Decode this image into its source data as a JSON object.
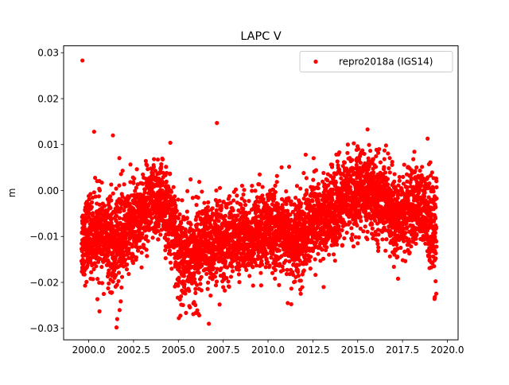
{
  "chart_data": {
    "type": "scatter",
    "title": "LAPC V",
    "xlabel": "",
    "ylabel": "m",
    "xlim": [
      1998.6,
      2020.6
    ],
    "ylim": [
      -0.0325,
      0.0315
    ],
    "xticks": [
      2000.0,
      2002.5,
      2005.0,
      2007.5,
      2010.0,
      2012.5,
      2015.0,
      2017.5,
      2020.0
    ],
    "xtick_labels": [
      "2000.0",
      "2002.5",
      "2005.0",
      "2007.5",
      "2010.0",
      "2012.5",
      "2015.0",
      "2017.5",
      "2020.0"
    ],
    "yticks": [
      -0.03,
      -0.02,
      -0.01,
      0.0,
      0.01,
      0.02,
      0.03
    ],
    "ytick_labels": [
      "−0.03",
      "−0.02",
      "−0.01",
      "0.00",
      "0.01",
      "0.02",
      "0.03"
    ],
    "grid": false,
    "legend_position": "top-right",
    "color": "#ff0000",
    "series": [
      {
        "name": "repro2018a (IGS14)",
        "marker": "dot",
        "trend": {
          "x": [
            1999.6,
            2000.5,
            2001.0,
            2001.5,
            2002.0,
            2002.7,
            2003.3,
            2004.0,
            2004.5,
            2005.0,
            2005.7,
            2006.5,
            2007.5,
            2008.5,
            2009.5,
            2010.3,
            2011.0,
            2011.6,
            2012.3,
            2013.0,
            2013.7,
            2014.5,
            2015.3,
            2016.0,
            2016.5,
            2017.0,
            2017.5,
            2018.3,
            2019.0,
            2019.4
          ],
          "y": [
            -0.011,
            -0.009,
            -0.011,
            -0.012,
            -0.009,
            -0.006,
            -0.003,
            -0.002,
            -0.005,
            -0.013,
            -0.015,
            -0.012,
            -0.011,
            -0.01,
            -0.009,
            -0.0085,
            -0.009,
            -0.012,
            -0.007,
            -0.005,
            -0.004,
            -0.001,
            0.0,
            -0.002,
            -0.001,
            -0.006,
            -0.005,
            -0.003,
            -0.006,
            -0.008
          ]
        },
        "outliers": {
          "x": [
            1999.65,
            2000.3,
            2001.35,
            2007.15,
            2015.55,
            2018.9,
            2001.55,
            2006.7,
            2000.6,
            2013.1,
            2017.25,
            2019.3,
            2007.3,
            2012.1,
            2004.55,
            2011.1
          ],
          "y": [
            0.0283,
            0.0128,
            0.012,
            0.0147,
            0.0133,
            0.0113,
            -0.0298,
            -0.029,
            -0.0263,
            -0.021,
            -0.0192,
            -0.0232,
            -0.0248,
            0.0078,
            0.0104,
            -0.0245
          ]
        }
      }
    ]
  }
}
